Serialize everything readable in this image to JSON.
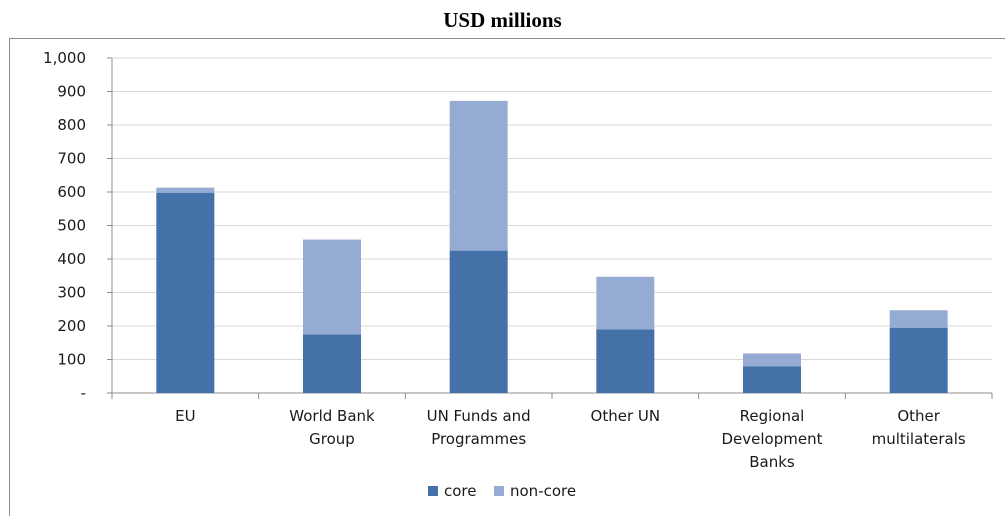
{
  "chart_data": {
    "type": "bar",
    "stacked": true,
    "title": "USD millions",
    "categories": [
      [
        "EU"
      ],
      [
        "World Bank",
        "Group"
      ],
      [
        "UN Funds and",
        "Programmes"
      ],
      [
        "Other UN"
      ],
      [
        "Regional",
        "Development",
        "Banks"
      ],
      [
        "Other",
        "multilaterals"
      ]
    ],
    "series": [
      {
        "name": "core",
        "color": "#4472a8",
        "values": [
          598,
          175,
          425,
          190,
          80,
          195
        ]
      },
      {
        "name": "non-core",
        "color": "#95abd3",
        "values": [
          15,
          283,
          447,
          157,
          38,
          52
        ]
      }
    ],
    "ylim": [
      0,
      1000
    ],
    "yticks": [
      {
        "value": 0,
        "label": "-"
      },
      {
        "value": 100,
        "label": "100"
      },
      {
        "value": 200,
        "label": "200"
      },
      {
        "value": 300,
        "label": "300"
      },
      {
        "value": 400,
        "label": "400"
      },
      {
        "value": 500,
        "label": "500"
      },
      {
        "value": 600,
        "label": "600"
      },
      {
        "value": 700,
        "label": "700"
      },
      {
        "value": 800,
        "label": "800"
      },
      {
        "value": 900,
        "label": "900"
      },
      {
        "value": 1000,
        "label": "1,000"
      }
    ],
    "grid": true,
    "legend": "bottom-center"
  }
}
